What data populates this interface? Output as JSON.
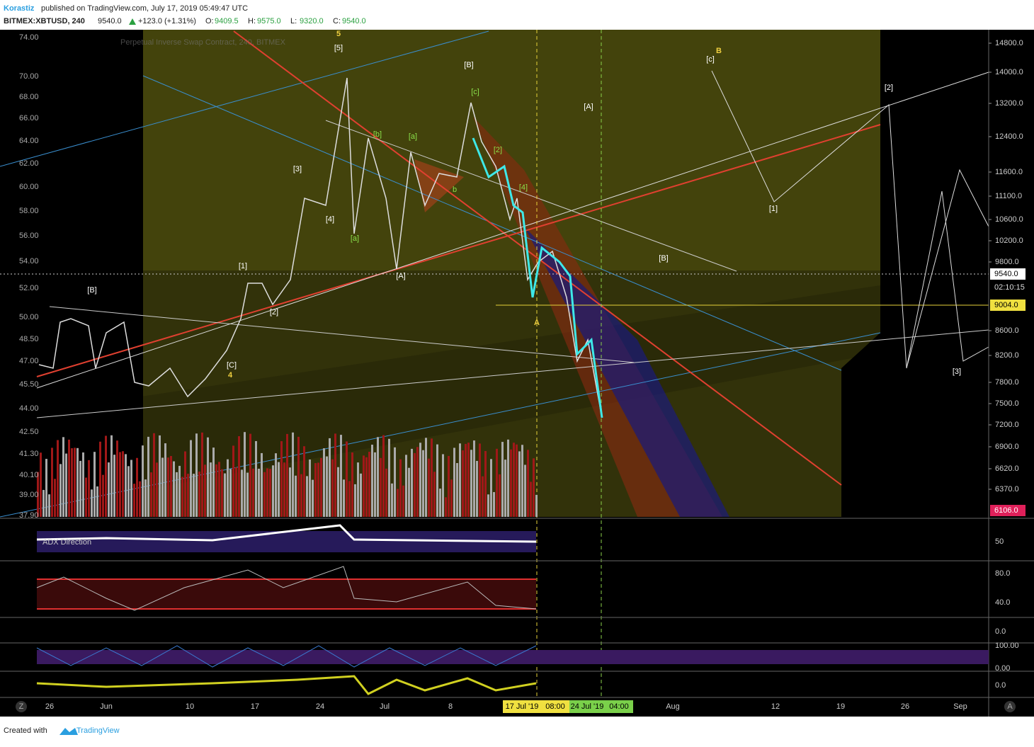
{
  "header": {
    "author": "Korastiz",
    "published": "published on TradingView.com, July 17, 2019 05:49:47 UTC",
    "symbol": "BITMEX:XBTUSD, 240",
    "price": "9540.0",
    "change": "+123.0 (+1.31%)",
    "ohlc": [
      {
        "label": "O:",
        "value": "9409.5"
      },
      {
        "label": "H:",
        "value": "9575.0"
      },
      {
        "label": "L:",
        "value": "9320.0"
      },
      {
        "label": "C:",
        "value": "9540.0"
      }
    ],
    "watermark": "Perpetual Inverse Swap Contract, 240, BITMEX"
  },
  "right_axis": [
    "14800.0",
    "14000.0",
    "13200.0",
    "12400.0",
    "11600.0",
    "11100.0",
    "10600.0",
    "10200.0",
    "9800.0",
    "8600.0",
    "8200.0",
    "7800.0",
    "7500.0",
    "7200.0",
    "6900.0",
    "6620.0",
    "6370.0"
  ],
  "left_axis": [
    "74.00",
    "70.00",
    "68.00",
    "66.00",
    "64.00",
    "62.00",
    "60.00",
    "58.00",
    "56.00",
    "54.00",
    "52.00",
    "50.00",
    "48.50",
    "47.00",
    "45.50",
    "44.00",
    "42.50",
    "41.30",
    "40.10",
    "39.00",
    "37.90"
  ],
  "price_tags": {
    "last": "9540.0",
    "countdown": "02:10:15",
    "level": "9004.0",
    "low": "6106.0"
  },
  "indicator_axes": [
    "50",
    "80.0",
    "40.0",
    "0.0",
    "100.00",
    "0.00",
    "0.0"
  ],
  "indicator_title": "ADX Direction",
  "time_axis": [
    "26",
    "Jun",
    "10",
    "17",
    "24",
    "Jul",
    "8",
    "Aug",
    "12",
    "19",
    "26",
    "Sep"
  ],
  "time_markers": [
    "17 Jul '19",
    "08:00",
    "24 Jul '19",
    "04:00"
  ],
  "axis_buttons": [
    "Z",
    "A"
  ],
  "wave_labels": [
    "5",
    "[5]",
    "[B]",
    "[c]",
    "B",
    "[c]",
    "[2]",
    "[A]",
    "[3]",
    "[1]",
    "[B]",
    "[C]",
    "4",
    "[4]",
    "[a]",
    "[b]",
    "[a]",
    "[A]",
    "[2]",
    "[1]",
    "[B]",
    "A",
    "[3]",
    "[2]",
    "[4]",
    "b"
  ],
  "footer": {
    "created": "Created with",
    "brand": "TradingView"
  }
}
